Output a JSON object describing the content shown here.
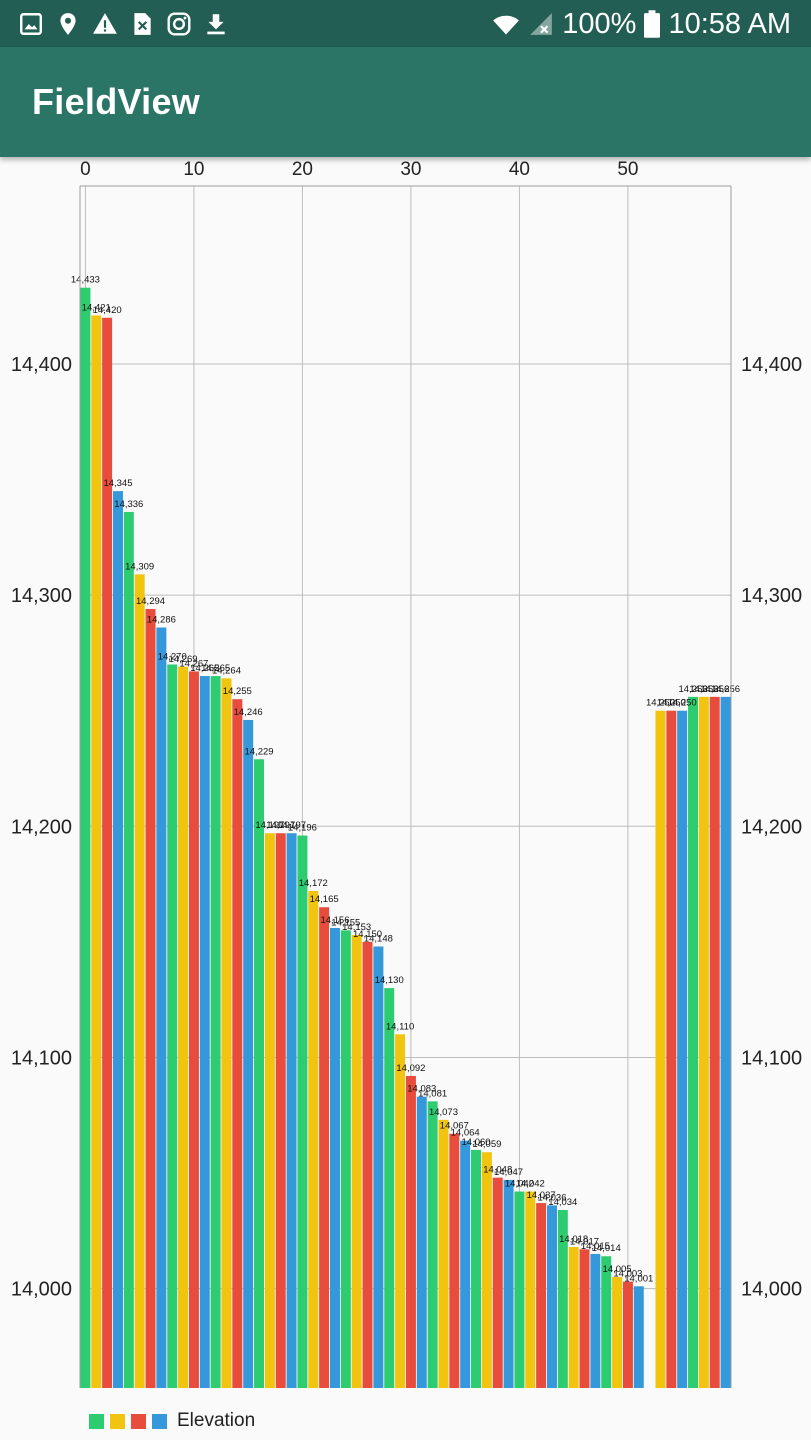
{
  "status_bar": {
    "battery": "100%",
    "time": "10:58 AM",
    "icons": [
      "image-icon",
      "location-pin-icon",
      "warning-icon",
      "sim-missing-icon",
      "instagram-icon",
      "download-icon",
      "wifi-icon",
      "signal-icon",
      "battery-icon"
    ]
  },
  "app_bar": {
    "title": "FieldView"
  },
  "colors": {
    "status_bar": "#225e53",
    "app_bar": "#2b7566",
    "series": [
      "#2ecc71",
      "#f1c40f",
      "#e74c3c",
      "#3498db"
    ]
  },
  "chart_data": {
    "type": "bar",
    "title": "",
    "x_axis_position": "top",
    "x_ticks": [
      0,
      10,
      20,
      30,
      40,
      50
    ],
    "y_ticks": [
      14000,
      14100,
      14200,
      14300,
      14400
    ],
    "y_tick_labels": [
      "14,000",
      "14,100",
      "14,200",
      "14,300",
      "14,400"
    ],
    "ylim": [
      13957,
      14477
    ],
    "xlim": [
      -0.5,
      59.5
    ],
    "grid": true,
    "y_axis": "both sides",
    "legend": {
      "position": "bottom-left",
      "label": "Elevation"
    },
    "series": [
      {
        "name": "Elevation",
        "x": [
          0,
          1,
          2,
          3,
          4,
          5,
          6,
          7,
          8,
          9,
          10,
          11,
          12,
          13,
          14,
          15,
          16,
          17,
          18,
          19,
          20,
          21,
          22,
          23,
          24,
          25,
          26,
          27,
          28,
          29,
          30,
          31,
          32,
          33,
          34,
          35,
          36,
          37,
          38,
          39,
          40,
          41,
          42,
          43,
          44,
          45,
          46,
          47,
          48,
          49,
          50,
          51,
          52,
          53,
          54,
          55,
          56,
          57,
          58,
          59
        ],
        "values": [
          14433,
          14421,
          14420,
          14345,
          14336,
          14309,
          14294,
          14286,
          14270,
          14269,
          14267,
          14265,
          14265,
          14264,
          14255,
          14246,
          14229,
          14197,
          14197,
          14197,
          14196,
          14172,
          14165,
          14156,
          14155,
          14153,
          14150,
          14148,
          14130,
          14110,
          14092,
          14083,
          14081,
          14073,
          14067,
          14064,
          14060,
          14059,
          14048,
          14047,
          14042,
          14042,
          14037,
          14036,
          14034,
          14018,
          14017,
          14015,
          14014,
          14005,
          14003,
          14001,
          null,
          14250,
          14250,
          14250,
          14256,
          14256,
          14256,
          14256
        ],
        "labels": [
          "14,433",
          "14,421",
          "14,420",
          "14,345",
          "14,336",
          "14,309",
          "14,294",
          "14,286",
          "14,270",
          "14,269",
          "14,267",
          "14,265",
          "14,265",
          "14,264",
          "14,255",
          "14,246",
          "14,229",
          "14,197",
          "14,197",
          "14,197",
          "14,196",
          "14,172",
          "14,165",
          "14,156",
          "14,155",
          "14,153",
          "14,150",
          "14,148",
          "14,130",
          "14,110",
          "14,092",
          "14,083",
          "14,081",
          "14,073",
          "14,067",
          "14,064",
          "14,060",
          "14,059",
          "14,048",
          "14,047",
          "14,042",
          "14,042",
          "14,037",
          "14,036",
          "14,034",
          "14,018",
          "14,017",
          "14,015",
          "14,014",
          "14,005",
          "14,003",
          "14,001",
          "",
          "14,250",
          "14,250",
          "14,250",
          "14,256",
          "14,256",
          "14,256",
          "14,256"
        ]
      }
    ]
  }
}
